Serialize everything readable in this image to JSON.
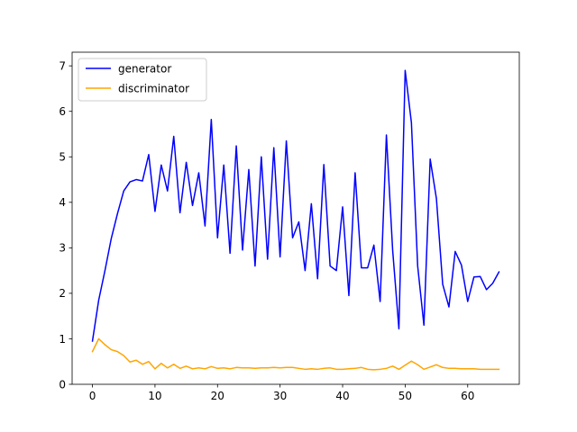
{
  "chart_data": {
    "type": "line",
    "xlim": [
      -3.25,
      68.25
    ],
    "ylim": [
      0,
      7.3
    ],
    "xticks": [
      0,
      10,
      20,
      30,
      40,
      50,
      60
    ],
    "yticks": [
      0,
      1,
      2,
      3,
      4,
      5,
      6,
      7
    ],
    "grid": false,
    "legend_position": "top-left",
    "series": [
      {
        "name": "generator",
        "color": "#0000ff",
        "x": [
          0,
          1,
          2,
          3,
          4,
          5,
          6,
          7,
          8,
          9,
          10,
          11,
          12,
          13,
          14,
          15,
          16,
          17,
          18,
          19,
          20,
          21,
          22,
          23,
          24,
          25,
          26,
          27,
          28,
          29,
          30,
          31,
          32,
          33,
          34,
          35,
          36,
          37,
          38,
          39,
          40,
          41,
          42,
          43,
          44,
          45,
          46,
          47,
          48,
          49,
          50,
          51,
          52,
          53,
          54,
          55,
          56,
          57,
          58,
          59,
          60,
          61,
          62,
          63,
          64,
          65
        ],
        "values": [
          0.95,
          1.85,
          2.5,
          3.2,
          3.75,
          4.25,
          4.45,
          4.5,
          4.47,
          5.05,
          3.8,
          4.82,
          4.25,
          5.45,
          3.77,
          4.88,
          3.93,
          4.65,
          3.48,
          5.82,
          3.22,
          4.82,
          2.88,
          5.24,
          2.95,
          4.72,
          2.6,
          5.0,
          2.75,
          5.2,
          2.8,
          5.35,
          3.22,
          3.57,
          2.5,
          3.97,
          2.32,
          4.83,
          2.6,
          2.5,
          3.9,
          1.95,
          4.65,
          2.56,
          2.56,
          3.06,
          1.82,
          5.48,
          2.95,
          1.22,
          6.9,
          5.75,
          2.6,
          1.3,
          4.95,
          4.08,
          2.2,
          1.7,
          2.92,
          2.62,
          1.82,
          2.36,
          2.37,
          2.08,
          2.22,
          2.47
        ]
      },
      {
        "name": "discriminator",
        "color": "#ffa500",
        "x": [
          0,
          1,
          2,
          3,
          4,
          5,
          6,
          7,
          8,
          9,
          10,
          11,
          12,
          13,
          14,
          15,
          16,
          17,
          18,
          19,
          20,
          21,
          22,
          23,
          24,
          25,
          26,
          27,
          28,
          29,
          30,
          31,
          32,
          33,
          34,
          35,
          36,
          37,
          38,
          39,
          40,
          41,
          42,
          43,
          44,
          45,
          46,
          47,
          48,
          49,
          50,
          51,
          52,
          53,
          54,
          55,
          56,
          57,
          58,
          59,
          60,
          61,
          62,
          63,
          64,
          65
        ],
        "values": [
          0.72,
          1.0,
          0.87,
          0.76,
          0.72,
          0.63,
          0.49,
          0.53,
          0.44,
          0.5,
          0.34,
          0.46,
          0.36,
          0.44,
          0.35,
          0.4,
          0.34,
          0.36,
          0.34,
          0.39,
          0.35,
          0.36,
          0.34,
          0.37,
          0.36,
          0.36,
          0.35,
          0.36,
          0.36,
          0.37,
          0.36,
          0.37,
          0.37,
          0.35,
          0.33,
          0.34,
          0.33,
          0.35,
          0.36,
          0.33,
          0.33,
          0.34,
          0.35,
          0.37,
          0.33,
          0.32,
          0.33,
          0.35,
          0.4,
          0.33,
          0.42,
          0.51,
          0.43,
          0.33,
          0.38,
          0.43,
          0.37,
          0.35,
          0.35,
          0.34,
          0.34,
          0.34,
          0.33,
          0.33,
          0.33,
          0.33
        ]
      }
    ]
  }
}
